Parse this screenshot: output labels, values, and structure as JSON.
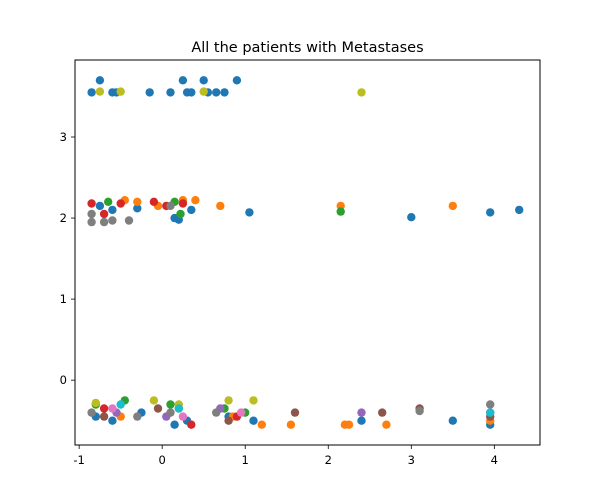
{
  "chart_data": {
    "type": "scatter",
    "title": "All the patients with Metastases",
    "xlabel": "",
    "ylabel": "",
    "xlim": [
      -1.05,
      4.55
    ],
    "ylim": [
      -0.8,
      3.95
    ],
    "xticks": [
      -1,
      0,
      1,
      2,
      3,
      4
    ],
    "yticks": [
      0,
      1,
      2,
      3
    ],
    "grid": false,
    "legend": null,
    "series": [
      {
        "color": "#1f77b4",
        "points": [
          [
            -0.85,
            3.55
          ],
          [
            -0.75,
            3.7
          ],
          [
            -0.6,
            3.55
          ],
          [
            -0.55,
            3.55
          ],
          [
            -0.15,
            3.55
          ],
          [
            0.1,
            3.55
          ],
          [
            0.25,
            3.7
          ],
          [
            0.3,
            3.55
          ],
          [
            0.35,
            3.55
          ],
          [
            0.5,
            3.7
          ],
          [
            0.55,
            3.55
          ],
          [
            0.65,
            3.55
          ],
          [
            0.75,
            3.55
          ],
          [
            0.9,
            3.7
          ],
          [
            -0.75,
            2.15
          ],
          [
            -0.6,
            2.1
          ],
          [
            -0.3,
            2.12
          ],
          [
            0.15,
            2.0
          ],
          [
            0.2,
            1.98
          ],
          [
            0.35,
            2.1
          ],
          [
            1.05,
            2.07
          ],
          [
            3.0,
            2.01
          ],
          [
            3.95,
            2.07
          ],
          [
            4.3,
            2.1
          ],
          [
            -0.8,
            -0.45
          ],
          [
            -0.6,
            -0.5
          ],
          [
            -0.25,
            -0.4
          ],
          [
            0.15,
            -0.55
          ],
          [
            0.3,
            -0.5
          ],
          [
            0.8,
            -0.45
          ],
          [
            1.1,
            -0.5
          ],
          [
            2.4,
            -0.5
          ],
          [
            3.5,
            -0.5
          ],
          [
            3.95,
            -0.55
          ]
        ]
      },
      {
        "color": "#ff7f0e",
        "points": [
          [
            -0.45,
            2.22
          ],
          [
            -0.3,
            2.2
          ],
          [
            -0.05,
            2.15
          ],
          [
            0.25,
            2.22
          ],
          [
            0.4,
            2.22
          ],
          [
            0.7,
            2.15
          ],
          [
            2.15,
            2.15
          ],
          [
            3.5,
            2.15
          ],
          [
            -0.5,
            -0.45
          ],
          [
            0.2,
            -0.35
          ],
          [
            0.85,
            -0.45
          ],
          [
            1.2,
            -0.55
          ],
          [
            1.55,
            -0.55
          ],
          [
            2.2,
            -0.55
          ],
          [
            2.25,
            -0.55
          ],
          [
            2.7,
            -0.55
          ],
          [
            3.95,
            -0.5
          ]
        ]
      },
      {
        "color": "#2ca02c",
        "points": [
          [
            -0.65,
            2.2
          ],
          [
            0.15,
            2.2
          ],
          [
            0.22,
            2.05
          ],
          [
            2.15,
            2.08
          ],
          [
            -0.8,
            -0.3
          ],
          [
            -0.45,
            -0.25
          ],
          [
            0.1,
            -0.3
          ],
          [
            0.75,
            -0.35
          ],
          [
            1.0,
            -0.4
          ]
        ]
      },
      {
        "color": "#d62728",
        "points": [
          [
            -0.85,
            2.18
          ],
          [
            -0.7,
            2.05
          ],
          [
            -0.5,
            2.18
          ],
          [
            -0.1,
            2.2
          ],
          [
            0.05,
            2.15
          ],
          [
            0.25,
            2.18
          ],
          [
            -0.7,
            -0.35
          ],
          [
            0.35,
            -0.55
          ],
          [
            0.9,
            -0.45
          ]
        ]
      },
      {
        "color": "#9467bd",
        "points": [
          [
            -0.55,
            -0.4
          ],
          [
            0.05,
            -0.45
          ],
          [
            0.7,
            -0.35
          ],
          [
            2.4,
            -0.4
          ],
          [
            3.95,
            -0.4
          ]
        ]
      },
      {
        "color": "#8c564b",
        "points": [
          [
            -0.7,
            -0.45
          ],
          [
            -0.05,
            -0.35
          ],
          [
            0.8,
            -0.5
          ],
          [
            1.6,
            -0.4
          ],
          [
            2.65,
            -0.4
          ],
          [
            3.1,
            -0.35
          ],
          [
            3.95,
            -0.45
          ]
        ]
      },
      {
        "color": "#e377c2",
        "points": [
          [
            -0.6,
            -0.35
          ],
          [
            0.25,
            -0.45
          ],
          [
            0.95,
            -0.4
          ]
        ]
      },
      {
        "color": "#7f7f7f",
        "points": [
          [
            -0.85,
            2.05
          ],
          [
            -0.85,
            1.95
          ],
          [
            -0.7,
            1.95
          ],
          [
            -0.6,
            1.97
          ],
          [
            -0.4,
            1.97
          ],
          [
            0.1,
            2.15
          ],
          [
            -0.85,
            -0.4
          ],
          [
            -0.3,
            -0.45
          ],
          [
            0.1,
            -0.4
          ],
          [
            0.65,
            -0.4
          ],
          [
            3.1,
            -0.38
          ],
          [
            3.95,
            -0.3
          ]
        ]
      },
      {
        "color": "#bcbd22",
        "points": [
          [
            -0.75,
            3.56
          ],
          [
            -0.5,
            3.56
          ],
          [
            0.5,
            3.56
          ],
          [
            2.4,
            3.55
          ],
          [
            -0.8,
            -0.28
          ],
          [
            -0.1,
            -0.25
          ],
          [
            0.2,
            -0.3
          ],
          [
            0.8,
            -0.25
          ],
          [
            1.1,
            -0.25
          ]
        ]
      },
      {
        "color": "#17becf",
        "points": [
          [
            -0.5,
            -0.3
          ],
          [
            0.2,
            -0.35
          ],
          [
            3.95,
            -0.4
          ]
        ]
      }
    ]
  }
}
